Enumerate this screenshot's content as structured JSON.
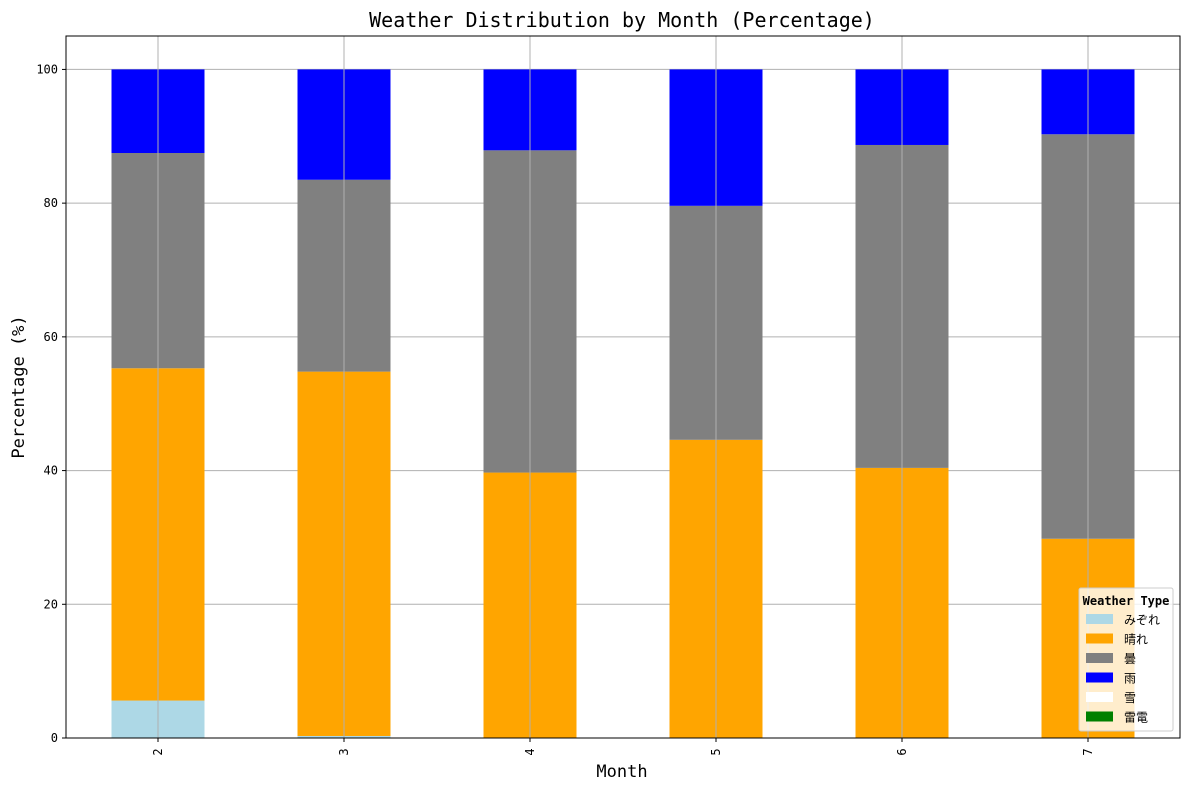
{
  "chart_data": {
    "type": "bar",
    "stacked": true,
    "title": "Weather Distribution by Month (Percentage)",
    "xlabel": "Month",
    "ylabel": "Percentage (%)",
    "categories": [
      "2",
      "3",
      "4",
      "5",
      "6",
      "7"
    ],
    "ylim": [
      0,
      105
    ],
    "yticks": [
      "0",
      "20",
      "40",
      "60",
      "80",
      "100"
    ],
    "grid": true,
    "legend_title": "Weather Type",
    "legend_position": "lower-right",
    "series": [
      {
        "name": "みぞれ",
        "color": "#add8e6",
        "values": [
          5.6,
          0.3,
          0,
          0,
          0,
          0
        ]
      },
      {
        "name": "晴れ",
        "color": "#ffa500",
        "values": [
          49.7,
          54.5,
          39.7,
          44.6,
          40.4,
          29.8
        ]
      },
      {
        "name": "曇",
        "color": "#808080",
        "values": [
          32.2,
          28.7,
          48.2,
          35.0,
          48.3,
          60.5
        ]
      },
      {
        "name": "雨",
        "color": "#0000ff",
        "values": [
          12.5,
          16.5,
          12.1,
          20.4,
          11.3,
          9.7
        ]
      },
      {
        "name": "雪",
        "color": "#ffffff",
        "values": [
          0,
          0,
          0,
          0,
          0,
          0
        ]
      },
      {
        "name": "雷電",
        "color": "#008000",
        "values": [
          0,
          0,
          0,
          0,
          0,
          0
        ]
      }
    ]
  }
}
